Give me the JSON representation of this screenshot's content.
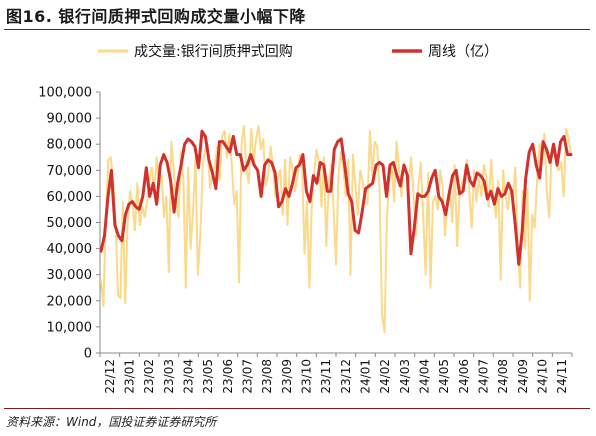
{
  "header": {
    "title": "图16. 银行间质押式回购成交量小幅下降"
  },
  "footer": {
    "source": "资料来源：Wind，国投证券证券研究所"
  },
  "chart_data": {
    "type": "line",
    "xlabel": "",
    "ylabel": "",
    "ylim": [
      0,
      100000
    ],
    "yticks": [
      "0",
      "10,000",
      "20,000",
      "30,000",
      "40,000",
      "50,000",
      "60,000",
      "70,000",
      "80,000",
      "90,000",
      "100,000"
    ],
    "xticks": [
      "22/12",
      "23/01",
      "23/02",
      "23/03",
      "23/04",
      "23/05",
      "23/06",
      "23/07",
      "23/08",
      "23/09",
      "23/10",
      "23/11",
      "23/12",
      "24/01",
      "24/02",
      "24/03",
      "24/04",
      "24/05",
      "24/06",
      "24/07",
      "24/08",
      "24/09",
      "24/10",
      "24/11"
    ],
    "legend": {
      "placement": "top",
      "items": [
        "成交量:银行间质押式回购",
        "周线（亿）"
      ]
    },
    "grid": false,
    "colors": {
      "daily": "#fbd98a",
      "weekly": "#d0312d",
      "axis": "#888888"
    },
    "series": [
      {
        "name": "成交量:银行间质押式回购",
        "x_start": "22/12",
        "x_end": "24/11",
        "values": [
          28000,
          18000,
          52000,
          74000,
          75000,
          66000,
          52000,
          22000,
          21000,
          58000,
          19000,
          50000,
          62000,
          57000,
          47000,
          65000,
          49000,
          56000,
          52000,
          58000,
          66000,
          71000,
          62000,
          75000,
          64000,
          68000,
          52000,
          60000,
          31000,
          81000,
          70000,
          58000,
          52000,
          77000,
          66000,
          25000,
          71000,
          40000,
          55000,
          75000,
          30000,
          45000,
          72000,
          78000,
          80000,
          63000,
          68000,
          72000,
          79000,
          66000,
          83000,
          85000,
          75000,
          84000,
          72000,
          57000,
          62000,
          27000,
          80000,
          87000,
          70000,
          65000,
          86000,
          73000,
          82000,
          87000,
          78000,
          82000,
          64000,
          68000,
          79000,
          72000,
          60000,
          67000,
          70000,
          53000,
          74000,
          49000,
          75000,
          71000,
          62000,
          67000,
          76000,
          73000,
          38000,
          58000,
          25000,
          57000,
          69000,
          78000,
          73000,
          56000,
          75000,
          41000,
          65000,
          72000,
          55000,
          34000,
          68000,
          77000,
          71000,
          60000,
          74000,
          30000,
          76000,
          64000,
          53000,
          70000,
          66000,
          58000,
          57000,
          85000,
          68000,
          81000,
          79000,
          62000,
          15000,
          8000,
          52000,
          67000,
          72000,
          58000,
          81000,
          71000,
          60000,
          73000,
          70000,
          65000,
          75000,
          61000,
          45000,
          64000,
          73000,
          52000,
          30000,
          69000,
          25000,
          58000,
          60000,
          55000,
          70000,
          64000,
          45000,
          59000,
          62000,
          50000,
          72000,
          41000,
          61000,
          65000,
          68000,
          74000,
          63000,
          48000,
          70000,
          58000,
          67000,
          60000,
          72000,
          68000,
          56000,
          74000,
          60000,
          52000,
          66000,
          28000,
          70000,
          60000,
          55000,
          64000,
          58000,
          71000,
          42000,
          25000,
          62000,
          40000,
          63000,
          20000,
          53000,
          48000,
          66000,
          80000,
          74000,
          84000,
          62000,
          52000,
          78000,
          80000,
          72000,
          70000,
          73000,
          60000,
          86000,
          82000,
          76000
        ]
      },
      {
        "name": "周线（亿）",
        "x_start": "22/12",
        "x_end": "24/11",
        "values": [
          39000,
          45000,
          60000,
          70000,
          49000,
          45000,
          43000,
          53000,
          57000,
          58000,
          56000,
          55000,
          60000,
          71000,
          60000,
          65000,
          57000,
          72000,
          76000,
          73000,
          66000,
          54000,
          65000,
          72000,
          80000,
          82000,
          81000,
          79000,
          71000,
          85000,
          83000,
          74000,
          69000,
          63000,
          81000,
          81000,
          79000,
          77000,
          83000,
          76000,
          76000,
          70000,
          72000,
          76000,
          72000,
          70000,
          60000,
          72000,
          74000,
          73000,
          69000,
          56000,
          58000,
          63000,
          60000,
          65000,
          71000,
          72000,
          76000,
          62000,
          58000,
          68000,
          65000,
          73000,
          72000,
          62000,
          62000,
          78000,
          81000,
          82000,
          72000,
          61000,
          58000,
          47000,
          46000,
          54000,
          63000,
          64000,
          65000,
          72000,
          73000,
          72000,
          60000,
          72000,
          73000,
          68000,
          64000,
          72000,
          68000,
          38000,
          48000,
          61000,
          60000,
          60000,
          62000,
          67000,
          70000,
          60000,
          58000,
          53000,
          61000,
          68000,
          70000,
          61000,
          62000,
          72000,
          66000,
          64000,
          69000,
          68000,
          66000,
          59000,
          62000,
          57000,
          63000,
          60000,
          61000,
          65000,
          62000,
          49000,
          34000,
          47000,
          67000,
          77000,
          80000,
          72000,
          67000,
          81000,
          78000,
          73000,
          80000,
          72000,
          81000,
          83000,
          76000,
          76000
        ]
      }
    ]
  }
}
